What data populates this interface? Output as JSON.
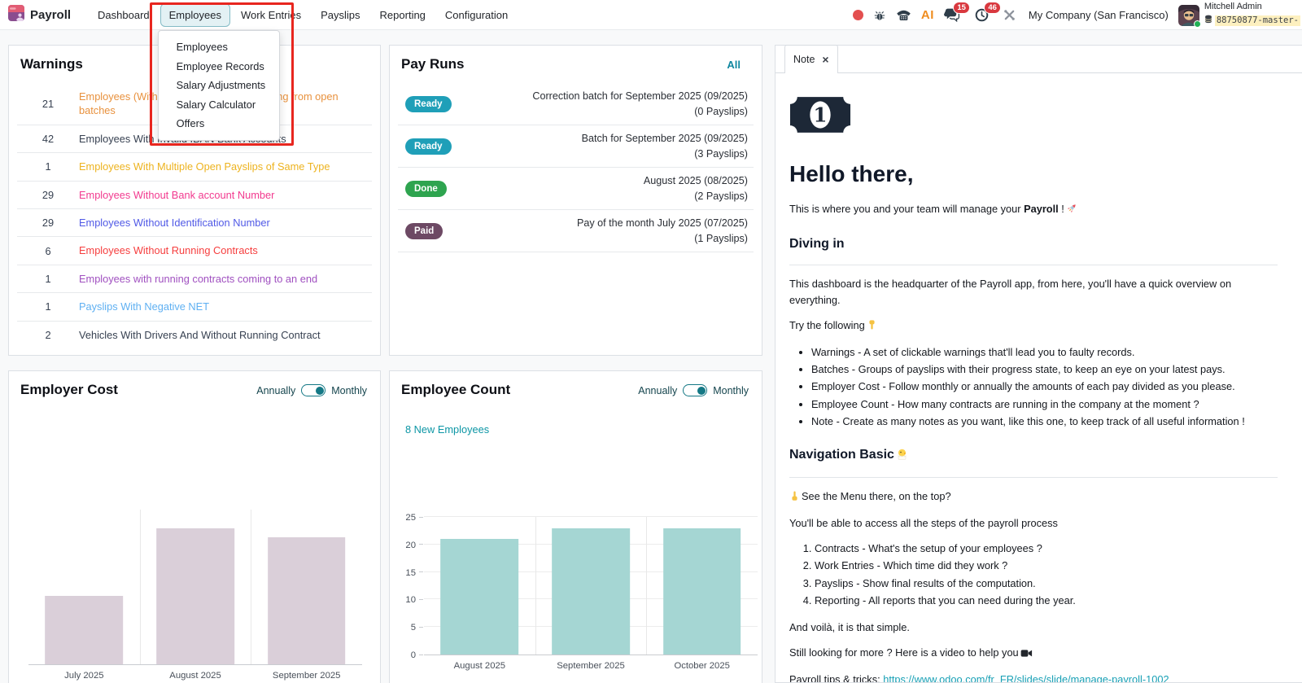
{
  "topbar": {
    "app_name": "Payroll",
    "menus": [
      {
        "label": "Dashboard",
        "active": false
      },
      {
        "label": "Employees",
        "active": true
      },
      {
        "label": "Work Entries",
        "active": false
      },
      {
        "label": "Payslips",
        "active": false
      },
      {
        "label": "Reporting",
        "active": false
      },
      {
        "label": "Configuration",
        "active": false
      }
    ],
    "dropdown_items": [
      {
        "label": "Employees"
      },
      {
        "label": "Employee Records"
      },
      {
        "label": "Salary Adjustments"
      },
      {
        "label": "Salary Calculator"
      },
      {
        "label": "Offers"
      }
    ],
    "systray": {
      "ai_label": "AI",
      "messages_badge": "15",
      "activities_badge": "46",
      "company": "My Company (San Francisco)",
      "user_name": "Mitchell Admin",
      "database": "88750877-master-"
    }
  },
  "icons": {
    "close": "×",
    "systray": [
      "record-dot",
      "bug-icon",
      "phone-icon",
      "ai-icon",
      "chat-icon",
      "clock-icon",
      "tools-icon"
    ]
  },
  "warnings": {
    "title": "Warnings",
    "rows": [
      {
        "count": "21",
        "label": "Employees (With Running Contracts) Missing from open batches",
        "color": "#e8913d"
      },
      {
        "count": "42",
        "label": "Employees With Invalid IBAN Bank Accounts",
        "color": "#374151"
      },
      {
        "count": "1",
        "label": "Employees With Multiple Open Payslips of Same Type",
        "color": "#edb31f"
      },
      {
        "count": "29",
        "label": "Employees Without Bank account Number",
        "color": "#f23a8f"
      },
      {
        "count": "29",
        "label": "Employees Without Identification Number",
        "color": "#5059e6"
      },
      {
        "count": "6",
        "label": "Employees Without Running Contracts",
        "color": "#f63e3e"
      },
      {
        "count": "1",
        "label": "Employees with running contracts coming to an end",
        "color": "#a050c0"
      },
      {
        "count": "1",
        "label": "Payslips With Negative NET",
        "color": "#5fb0f2"
      },
      {
        "count": "2",
        "label": "Vehicles With Drivers And Without Running Contract",
        "color": "#374151"
      }
    ]
  },
  "pay_runs": {
    "title": "Pay Runs",
    "all_link": "All",
    "rows": [
      {
        "status": "Ready",
        "status_color": "#1f9fb8",
        "line1": "Correction batch for September 2025 (09/2025)",
        "line2": "(0 Payslips)"
      },
      {
        "status": "Ready",
        "status_color": "#1f9fb8",
        "line1": "Batch for September 2025 (09/2025)",
        "line2": "(3 Payslips)"
      },
      {
        "status": "Done",
        "status_color": "#2ea44f",
        "line1": "August 2025 (08/2025)",
        "line2": "(2 Payslips)"
      },
      {
        "status": "Paid",
        "status_color": "#6d4964",
        "line1": "Pay of the month July 2025 (07/2025)",
        "line2": "(1 Payslips)"
      }
    ]
  },
  "chart_data": [
    {
      "type": "bar",
      "title": "Employer Cost",
      "categories": [
        "July 2025",
        "August 2025",
        "September 2025"
      ],
      "values": [
        0.44,
        0.88,
        0.82
      ],
      "value_note": "relative bar heights; no y-axis labels shown in chart",
      "ylim": [
        0,
        1
      ],
      "yticks": [],
      "bar_color": "#dacfd9",
      "grid": "vertical-separators",
      "toggle": {
        "left": "Annually",
        "right": "Monthly",
        "state": "Monthly"
      }
    },
    {
      "type": "bar",
      "title": "Employee Count",
      "link": "8 New Employees",
      "categories": [
        "August 2025",
        "September 2025",
        "October 2025"
      ],
      "values": [
        21,
        23,
        23
      ],
      "ylim": [
        0,
        25
      ],
      "yticks": [
        0,
        5,
        10,
        15,
        20,
        25
      ],
      "bar_color": "#a5d6d3",
      "grid": "horizontal-and-vertical",
      "toggle": {
        "left": "Annually",
        "right": "Monthly",
        "state": "Monthly"
      }
    }
  ],
  "note": {
    "tab_label": "Note",
    "heading": "Hello there,",
    "intro_prefix": "This is where you and your team will manage your ",
    "intro_bold": "Payroll",
    "intro_suffix": " !",
    "diving": {
      "title": "Diving in",
      "p1": "This dashboard is the headquarter of the Payroll app, from here, you'll have a quick overview on everything.",
      "p2": "Try the following",
      "bullets": [
        "Warnings - A set of clickable warnings that'll lead you to faulty records.",
        "Batches - Groups of payslips with their progress state, to keep an eye on your latest pays.",
        "Employer Cost - Follow monthly or annually the amounts of each pay divided as you please.",
        "Employee Count - How many contracts are running in the company at the moment ?",
        "Note - Create as many notes as you want, like this one, to keep track of all useful information !"
      ]
    },
    "navigation": {
      "title": "Navigation Basic",
      "p1": "See the Menu there, on the top?",
      "p2": "You'll be able to access all the steps of the payroll process",
      "steps": [
        "Contracts - What's the setup of your employees ?",
        "Work Entries - Which time did they work ?",
        "Payslips - Show final results of the computation.",
        "Reporting - All reports that you can need during the year."
      ],
      "p3": "And voilà, it is that simple.",
      "p4": "Still looking for more ? Here is a video to help you",
      "tips_label": "Payroll tips & tricks: ",
      "tips_url": "https://www.odoo.com/fr_FR/slides/slide/manage-payroll-1002"
    }
  }
}
